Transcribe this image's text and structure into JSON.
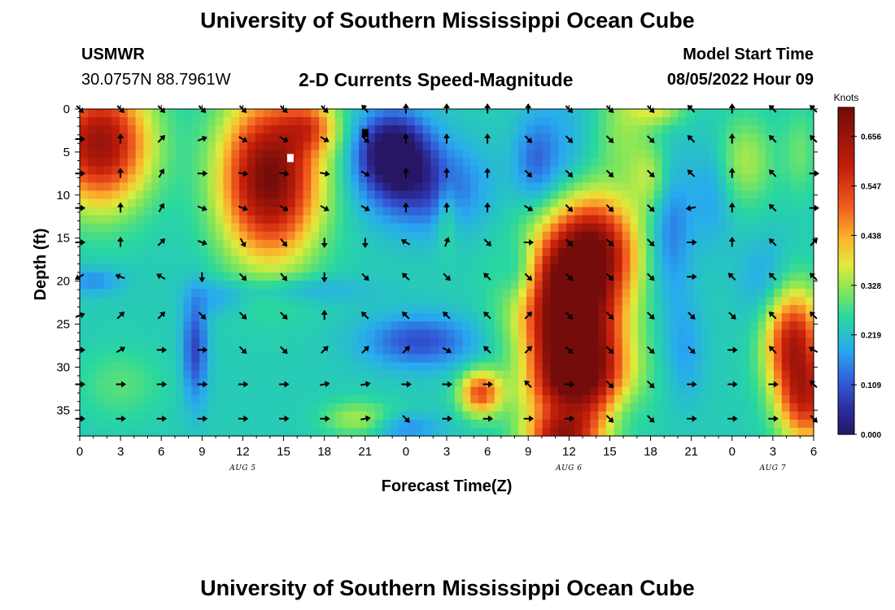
{
  "header": {
    "title": "University of Southern Mississippi Ocean Cube",
    "station": "USMWR",
    "coords": "30.0757N  88.7961W",
    "subtitle": "2-D Currents Speed-Magnitude",
    "model_start_label": "Model Start Time",
    "model_start_value": "08/05/2022 Hour 09"
  },
  "footer": {
    "title": "University of Southern Mississippi Ocean Cube"
  },
  "colors": {
    "background": "#ffffff",
    "axis": "#000000",
    "arrow": "#000000"
  },
  "chart_data": {
    "type": "heatmap",
    "title": "2-D Currents Speed-Magnitude",
    "xlabel": "Forecast Time(Z)",
    "ylabel": "Depth (ft)",
    "x_ticks": [
      "0",
      "3",
      "6",
      "9",
      "12",
      "15",
      "18",
      "21",
      "0",
      "3",
      "6",
      "9",
      "12",
      "15",
      "18",
      "21",
      "0",
      "3",
      "6"
    ],
    "x_range_hours": [
      0,
      54
    ],
    "date_labels": [
      {
        "text": "AUG 5",
        "hour": 12
      },
      {
        "text": "AUG 6",
        "hour": 36
      },
      {
        "text": "AUG 7",
        "hour": 51
      }
    ],
    "y_ticks": [
      0,
      5,
      10,
      15,
      20,
      25,
      30,
      35
    ],
    "y_range": [
      0,
      38
    ],
    "y_inverted": true,
    "colorbar": {
      "unit": "Knots",
      "min": 0.0,
      "max": 0.72,
      "tick_labels": [
        "0.000",
        "0.109",
        "0.219",
        "0.328",
        "0.438",
        "0.547",
        "0.656"
      ],
      "tick_values": [
        0.0,
        0.109,
        0.219,
        0.328,
        0.438,
        0.547,
        0.656
      ]
    },
    "speed_field": {
      "background": 0.24,
      "blobs": [
        {
          "t": 1.5,
          "d": 4,
          "st": 3.5,
          "sd": 7,
          "v": 0.42,
          "note": "orange-red surface 0-6h"
        },
        {
          "t": 14,
          "d": 8,
          "st": 3.5,
          "sd": 9,
          "v": 0.48,
          "note": "dark red upper 9-19h"
        },
        {
          "t": 17,
          "d": 2,
          "st": 2,
          "sd": 3,
          "v": 0.18
        },
        {
          "t": 23,
          "d": 5,
          "st": 2.5,
          "sd": 4.5,
          "v": -0.28,
          "note": "navy low 21-24h"
        },
        {
          "t": 25.5,
          "d": 9,
          "st": 4,
          "sd": 5,
          "v": -0.15
        },
        {
          "t": 33.5,
          "d": 6,
          "st": 1.5,
          "sd": 5,
          "v": -0.1
        },
        {
          "t": 35.5,
          "d": 5,
          "st": 2,
          "sd": 8,
          "v": -0.05
        },
        {
          "t": 40,
          "d": 2,
          "st": 2,
          "sd": 6,
          "v": 0.08
        },
        {
          "t": 42,
          "d": 8,
          "st": 1.5,
          "sd": 4,
          "v": 0.1
        },
        {
          "t": 42.5,
          "d": 0,
          "st": 2,
          "sd": 2,
          "v": 0.12
        },
        {
          "t": 46.5,
          "d": 10,
          "st": 1.5,
          "sd": 6,
          "v": -0.06
        },
        {
          "t": 36,
          "d": 22,
          "st": 3.5,
          "sd": 8,
          "v": 0.5,
          "note": "dark red 12-19h lower"
        },
        {
          "t": 36.5,
          "d": 31,
          "st": 3.5,
          "sd": 6,
          "v": 0.48
        },
        {
          "t": 38,
          "d": 16,
          "st": 3,
          "sd": 6,
          "v": 0.32
        },
        {
          "t": 35.5,
          "d": 38,
          "st": 2.5,
          "sd": 2.5,
          "v": 0.3
        },
        {
          "t": 29.5,
          "d": 33,
          "st": 1.5,
          "sd": 2.5,
          "v": 0.28,
          "note": "red blob near 6h AUG 6"
        },
        {
          "t": 8.5,
          "d": 28,
          "st": 0.9,
          "sd": 6,
          "v": -0.15
        },
        {
          "t": 1,
          "d": 20,
          "st": 2,
          "sd": 1.5,
          "v": -0.08
        },
        {
          "t": 10,
          "d": 22,
          "st": 2,
          "sd": 2,
          "v": -0.05
        },
        {
          "t": 16,
          "d": 21,
          "st": 5,
          "sd": 1.5,
          "v": -0.06
        },
        {
          "t": 25,
          "d": 27,
          "st": 4,
          "sd": 3,
          "v": -0.14
        },
        {
          "t": 32.5,
          "d": 19,
          "st": 1.5,
          "sd": 4,
          "v": -0.1
        },
        {
          "t": 33,
          "d": 29,
          "st": 2,
          "sd": 4,
          "v": -0.06
        },
        {
          "t": 20.5,
          "d": 36,
          "st": 2.5,
          "sd": 2,
          "v": 0.1
        },
        {
          "t": 24,
          "d": 37,
          "st": 2.5,
          "sd": 1.5,
          "v": -0.08
        },
        {
          "t": 3,
          "d": 32,
          "st": 3,
          "sd": 4,
          "v": 0.05
        },
        {
          "t": 40,
          "d": 35,
          "st": 1.5,
          "sd": 3,
          "v": -0.04
        },
        {
          "t": 43.5,
          "d": 14,
          "st": 1.5,
          "sd": 8,
          "v": -0.1
        },
        {
          "t": 44.5,
          "d": 28,
          "st": 1.5,
          "sd": 6,
          "v": -0.06
        },
        {
          "t": 49,
          "d": 6,
          "st": 2,
          "sd": 5,
          "v": 0.1
        },
        {
          "t": 53,
          "d": 5,
          "st": 1.2,
          "sd": 5,
          "v": 0.06
        },
        {
          "t": 50.5,
          "d": 20,
          "st": 2,
          "sd": 5,
          "v": -0.06
        },
        {
          "t": 52.5,
          "d": 27,
          "st": 2,
          "sd": 6,
          "v": 0.36
        },
        {
          "t": 53.5,
          "d": 34,
          "st": 2,
          "sd": 5,
          "v": 0.3
        },
        {
          "t": 27,
          "d": 12,
          "st": 0.8,
          "sd": 4,
          "v": 0.08
        }
      ],
      "markers": [
        {
          "t": 15.5,
          "d": 5.7,
          "color": "#ffffff"
        },
        {
          "t": 21,
          "d": 2.8,
          "color": "#000000"
        }
      ]
    },
    "arrows": {
      "times": [
        0,
        3,
        6,
        9,
        12,
        15,
        18,
        21,
        24,
        27,
        30,
        33,
        36,
        39,
        42,
        45,
        48,
        51,
        54
      ],
      "depths": [
        0,
        3.5,
        7.5,
        11.5,
        15.5,
        19.5,
        24,
        28,
        32,
        36
      ],
      "direction_deg": [
        [
          135,
          135,
          135,
          135,
          135,
          135,
          135,
          320,
          0,
          0,
          0,
          0,
          135,
          135,
          135,
          315,
          0,
          315,
          315
        ],
        [
          90,
          0,
          45,
          70,
          120,
          120,
          120,
          135,
          0,
          0,
          0,
          135,
          135,
          135,
          135,
          315,
          0,
          315,
          315
        ],
        [
          90,
          0,
          30,
          90,
          100,
          100,
          100,
          120,
          0,
          0,
          0,
          135,
          135,
          135,
          135,
          315,
          0,
          315,
          90
        ],
        [
          90,
          0,
          30,
          110,
          110,
          120,
          120,
          120,
          0,
          0,
          0,
          120,
          135,
          135,
          135,
          260,
          0,
          315,
          90
        ],
        [
          90,
          0,
          45,
          110,
          150,
          140,
          180,
          180,
          300,
          20,
          135,
          90,
          135,
          135,
          135,
          90,
          0,
          315,
          45
        ],
        [
          240,
          290,
          300,
          180,
          135,
          140,
          180,
          135,
          315,
          135,
          315,
          135,
          135,
          135,
          135,
          90,
          315,
          315,
          315
        ],
        [
          70,
          45,
          45,
          135,
          135,
          135,
          0,
          315,
          315,
          315,
          315,
          45,
          135,
          135,
          135,
          135,
          135,
          315,
          315
        ],
        [
          90,
          60,
          90,
          90,
          135,
          135,
          45,
          45,
          45,
          120,
          315,
          45,
          135,
          135,
          135,
          135,
          90,
          315,
          300
        ],
        [
          90,
          90,
          90,
          90,
          90,
          90,
          80,
          80,
          90,
          90,
          90,
          315,
          90,
          135,
          135,
          90,
          90,
          90,
          315
        ],
        [
          90,
          90,
          90,
          90,
          90,
          90,
          90,
          80,
          135,
          90,
          90,
          90,
          90,
          135,
          135,
          90,
          90,
          90,
          135
        ]
      ]
    }
  }
}
